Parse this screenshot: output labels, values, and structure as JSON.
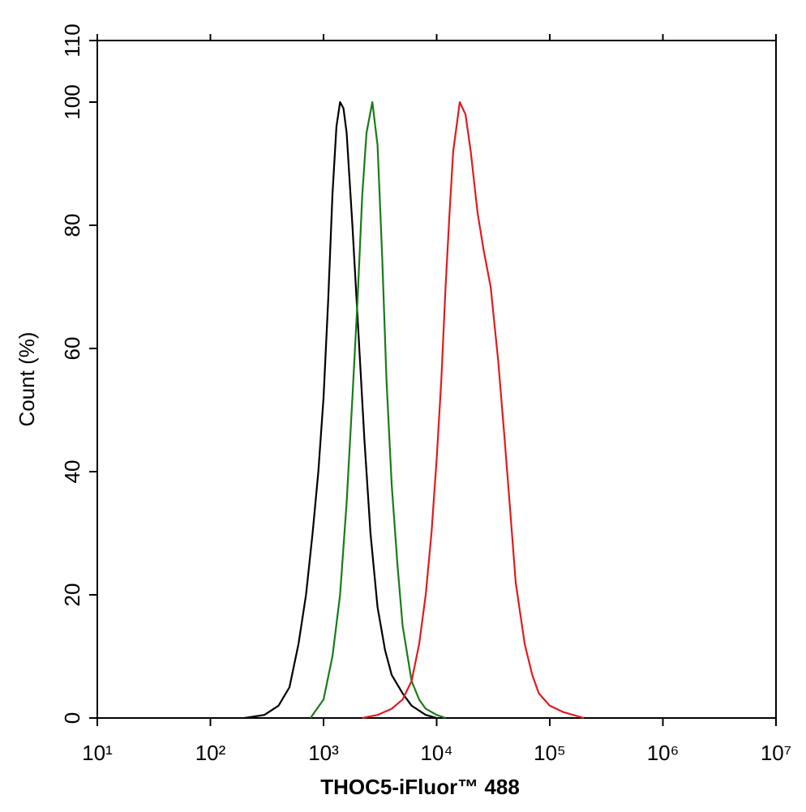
{
  "chart_data": {
    "type": "line",
    "xlabel": "THOC5-iFluor™ 488",
    "ylabel": "Count  (%)",
    "xscale": "log",
    "xlim": [
      10,
      10000000
    ],
    "xticks": [
      {
        "value": 10,
        "label": "10¹"
      },
      {
        "value": 100,
        "label": "10²"
      },
      {
        "value": 1000,
        "label": "10³"
      },
      {
        "value": 10000,
        "label": "10⁴"
      },
      {
        "value": 100000,
        "label": "10⁵"
      },
      {
        "value": 1000000,
        "label": "10⁶"
      },
      {
        "value": 10000000,
        "label": "10⁷"
      }
    ],
    "ylim": [
      0,
      110
    ],
    "yticks": [
      0,
      20,
      40,
      60,
      80,
      100,
      110
    ],
    "series": [
      {
        "color": "#000000",
        "x": [
          200,
          300,
          400,
          500,
          600,
          700,
          800,
          900,
          1000,
          1100,
          1200,
          1300,
          1400,
          1500,
          1600,
          1800,
          2000,
          2300,
          2600,
          3000,
          3500,
          4000,
          5000,
          6000,
          8000,
          10000
        ],
        "values": [
          0,
          0.5,
          2,
          5,
          12,
          20,
          30,
          40,
          52,
          68,
          85,
          96,
          100,
          99,
          95,
          80,
          65,
          45,
          30,
          18,
          11,
          7,
          4,
          2,
          0.5,
          0
        ]
      },
      {
        "color": "#1a7a1a",
        "x": [
          770,
          800,
          1000,
          1200,
          1400,
          1600,
          1800,
          2000,
          2200,
          2400,
          2700,
          3000,
          3300,
          3600,
          4000,
          4500,
          5000,
          6000,
          7000,
          8000,
          10000,
          12000
        ],
        "values": [
          0,
          0.5,
          3,
          10,
          20,
          35,
          52,
          68,
          85,
          95,
          100,
          93,
          75,
          55,
          38,
          25,
          15,
          6,
          3,
          1.5,
          0.5,
          0
        ]
      },
      {
        "color": "#e31a1c",
        "x": [
          2200,
          3000,
          4000,
          5000,
          6000,
          7000,
          8000,
          9000,
          10000,
          11000,
          12000,
          13000,
          14000,
          16000,
          18000,
          20000,
          23000,
          26000,
          30000,
          35000,
          40000,
          45000,
          50000,
          60000,
          70000,
          80000,
          100000,
          130000,
          200000
        ],
        "values": [
          0,
          0.5,
          1.5,
          3,
          6,
          12,
          20,
          30,
          42,
          55,
          70,
          82,
          92,
          100,
          98,
          92,
          82,
          76,
          70,
          58,
          45,
          33,
          22,
          12,
          7,
          4,
          2,
          1,
          0
        ]
      }
    ]
  }
}
